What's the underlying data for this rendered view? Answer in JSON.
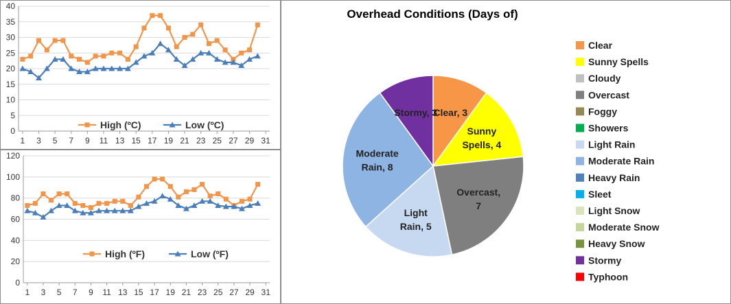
{
  "chart_data": [
    {
      "type": "line",
      "title": "",
      "xlabel": "",
      "ylabel": "",
      "x": [
        1,
        2,
        3,
        4,
        5,
        6,
        7,
        8,
        9,
        10,
        11,
        12,
        13,
        14,
        15,
        16,
        17,
        18,
        19,
        20,
        21,
        22,
        23,
        24,
        25,
        26,
        27,
        28,
        29,
        30
      ],
      "x_ticks": [
        1,
        3,
        5,
        7,
        9,
        11,
        13,
        15,
        17,
        19,
        21,
        23,
        25,
        27,
        29,
        31
      ],
      "y_ticks": [
        0,
        5,
        10,
        15,
        20,
        25,
        30,
        35,
        40
      ],
      "ylim": [
        0,
        40
      ],
      "grid": true,
      "legend_position": "bottom",
      "series": [
        {
          "name": "High (ºC)",
          "color": "#f0954a",
          "marker": "square",
          "values": [
            23,
            24,
            29,
            26,
            29,
            29,
            24,
            23,
            22,
            24,
            24,
            25,
            25,
            23,
            27,
            33,
            37,
            37,
            33,
            27,
            30,
            31,
            34,
            28,
            29,
            26,
            23,
            25,
            26,
            34
          ]
        },
        {
          "name": "Low (ºC)",
          "color": "#4a7ebb",
          "marker": "triangle",
          "values": [
            20,
            19,
            17,
            20,
            23,
            23,
            20,
            19,
            19,
            20,
            20,
            20,
            20,
            20,
            22,
            24,
            25,
            28,
            26,
            23,
            21,
            23,
            25,
            25,
            23,
            22,
            22,
            21,
            23,
            24
          ]
        }
      ]
    },
    {
      "type": "line",
      "title": "",
      "xlabel": "",
      "ylabel": "",
      "x": [
        1,
        2,
        3,
        4,
        5,
        6,
        7,
        8,
        9,
        10,
        11,
        12,
        13,
        14,
        15,
        16,
        17,
        18,
        19,
        20,
        21,
        22,
        23,
        24,
        25,
        26,
        27,
        28,
        29,
        30
      ],
      "x_ticks": [
        1,
        3,
        5,
        7,
        9,
        11,
        13,
        15,
        17,
        19,
        21,
        23,
        25,
        27,
        29,
        31
      ],
      "y_ticks": [
        0,
        20,
        40,
        60,
        80,
        100,
        120
      ],
      "ylim": [
        0,
        120
      ],
      "grid": true,
      "legend_position": "bottom",
      "series": [
        {
          "name": "High (ºF)",
          "color": "#f0954a",
          "marker": "square",
          "values": [
            73,
            75,
            84,
            78,
            84,
            84,
            75,
            73,
            71,
            75,
            75,
            77,
            77,
            73,
            81,
            91,
            98,
            98,
            91,
            81,
            86,
            88,
            93,
            82,
            84,
            79,
            73,
            77,
            79,
            93
          ]
        },
        {
          "name": "Low (ºF)",
          "color": "#4a7ebb",
          "marker": "triangle",
          "values": [
            68,
            66,
            62,
            68,
            73,
            73,
            68,
            66,
            66,
            68,
            68,
            68,
            68,
            68,
            72,
            75,
            77,
            82,
            79,
            73,
            70,
            73,
            77,
            77,
            73,
            72,
            72,
            70,
            73,
            75
          ]
        }
      ]
    },
    {
      "type": "pie",
      "title": "Overhead Conditions (Days of)",
      "legend_position": "right",
      "legend": [
        {
          "label": "Clear",
          "color": "#f79646"
        },
        {
          "label": "Sunny Spells",
          "color": "#ffff00"
        },
        {
          "label": "Cloudy",
          "color": "#c0c0c0"
        },
        {
          "label": "Overcast",
          "color": "#7f7f7f"
        },
        {
          "label": "Foggy",
          "color": "#948a54"
        },
        {
          "label": "Showers",
          "color": "#00b050"
        },
        {
          "label": "Light Rain",
          "color": "#c6d9f1"
        },
        {
          "label": "Moderate Rain",
          "color": "#8eb4e3"
        },
        {
          "label": "Heavy Rain",
          "color": "#4f81bd"
        },
        {
          "label": "Sleet",
          "color": "#00b0f0"
        },
        {
          "label": "Light Snow",
          "color": "#d8e4bc"
        },
        {
          "label": "Moderate Snow",
          "color": "#c3d69b"
        },
        {
          "label": "Heavy Snow",
          "color": "#77933c"
        },
        {
          "label": "Stormy",
          "color": "#7030a0"
        },
        {
          "label": "Typhoon",
          "color": "#ff0000"
        }
      ],
      "slices": [
        {
          "label": "Clear, 3",
          "category": "Clear",
          "value": 3,
          "color": "#f79646"
        },
        {
          "label": "Sunny Spells, 4",
          "category": "Sunny Spells",
          "value": 4,
          "color": "#ffff00"
        },
        {
          "label": "Overcast, 7",
          "category": "Overcast",
          "value": 7,
          "color": "#7f7f7f"
        },
        {
          "label": "Light Rain, 5",
          "category": "Light Rain",
          "value": 5,
          "color": "#c6d9f1"
        },
        {
          "label": "Moderate Rain, 8",
          "category": "Moderate Rain",
          "value": 8,
          "color": "#8eb4e3"
        },
        {
          "label": "Stormy, 3",
          "category": "Stormy",
          "value": 3,
          "color": "#7030a0"
        }
      ]
    }
  ]
}
